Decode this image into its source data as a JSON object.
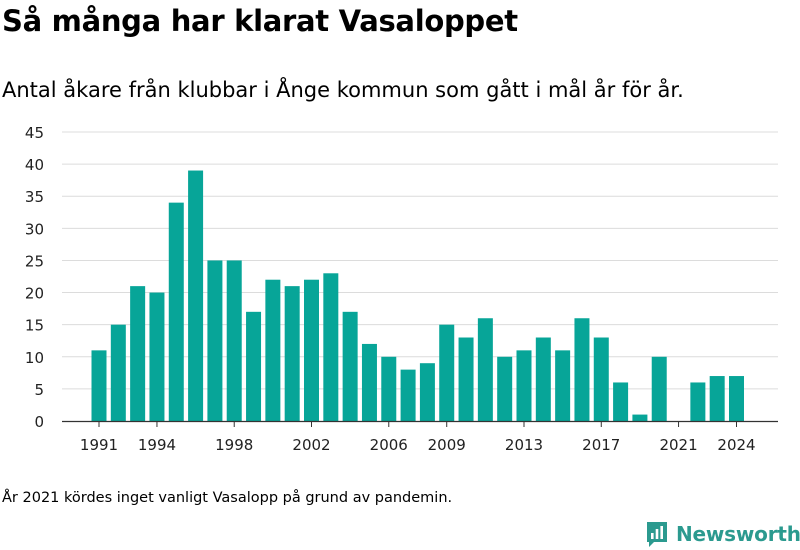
{
  "header": {
    "title": "Så många har klarat Vasaloppet",
    "subtitle": "Antal åkare från klubbar i Ånge kommun som gått i mål år för år."
  },
  "footer": {
    "note": "År 2021 kördes inget vanligt Vasalopp på grund av pandemin.",
    "brand": "Newsworthy"
  },
  "colors": {
    "bar": "#07a598",
    "grid": "#dcdcdc",
    "axis": "#333333",
    "brand": "#2b9a8f"
  },
  "chart_data": {
    "type": "bar",
    "categories": [
      1991,
      1992,
      1993,
      1994,
      1995,
      1996,
      1997,
      1998,
      1999,
      2000,
      2001,
      2002,
      2003,
      2004,
      2005,
      2006,
      2007,
      2008,
      2009,
      2010,
      2011,
      2012,
      2013,
      2014,
      2015,
      2016,
      2017,
      2018,
      2019,
      2020,
      2021,
      2022,
      2023,
      2024
    ],
    "values": [
      11,
      15,
      21,
      20,
      34,
      39,
      25,
      25,
      17,
      22,
      21,
      22,
      23,
      17,
      12,
      10,
      8,
      9,
      15,
      13,
      16,
      10,
      11,
      13,
      11,
      16,
      13,
      6,
      1,
      10,
      0,
      6,
      7,
      7
    ],
    "xtick_labels": [
      "1991",
      "1994",
      "1998",
      "2002",
      "2006",
      "2009",
      "2013",
      "2017",
      "2021",
      "2024"
    ],
    "ytick_labels": [
      "0",
      "5",
      "10",
      "15",
      "20",
      "25",
      "30",
      "35",
      "40",
      "45"
    ],
    "ylim": [
      0,
      45
    ],
    "grid": true,
    "xlabel": "",
    "ylabel": ""
  }
}
